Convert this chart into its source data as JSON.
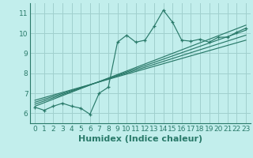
{
  "xlabel": "Humidex (Indice chaleur)",
  "bg_color": "#c2eeec",
  "grid_color": "#a0d0ce",
  "line_color": "#2a7a6a",
  "xlim": [
    -0.5,
    23.5
  ],
  "ylim": [
    5.5,
    11.5
  ],
  "xticks": [
    0,
    1,
    2,
    3,
    4,
    5,
    6,
    7,
    8,
    9,
    10,
    11,
    12,
    13,
    14,
    15,
    16,
    17,
    18,
    19,
    20,
    21,
    22,
    23
  ],
  "yticks": [
    6,
    7,
    8,
    9,
    10,
    11
  ],
  "main_series_x": [
    0,
    1,
    2,
    3,
    4,
    5,
    6,
    7,
    8,
    9,
    10,
    11,
    12,
    13,
    14,
    15,
    16,
    17,
    18,
    19,
    20,
    21,
    22,
    23
  ],
  "main_series_y": [
    6.3,
    6.15,
    6.35,
    6.5,
    6.35,
    6.25,
    5.95,
    7.0,
    7.3,
    9.55,
    9.9,
    9.55,
    9.65,
    10.35,
    11.15,
    10.55,
    9.65,
    9.6,
    9.7,
    9.55,
    9.8,
    9.8,
    10.05,
    10.25
  ],
  "regression_lines": [
    {
      "x0": 0,
      "y0": 6.35,
      "x1": 23,
      "y1": 10.4
    },
    {
      "x0": 0,
      "y0": 6.45,
      "x1": 23,
      "y1": 10.15
    },
    {
      "x0": 0,
      "y0": 6.55,
      "x1": 23,
      "y1": 9.9
    },
    {
      "x0": 0,
      "y0": 6.65,
      "x1": 23,
      "y1": 9.65
    }
  ],
  "tick_fontsize": 6.5,
  "label_fontsize": 8,
  "spine_color": "#2a7a6a"
}
